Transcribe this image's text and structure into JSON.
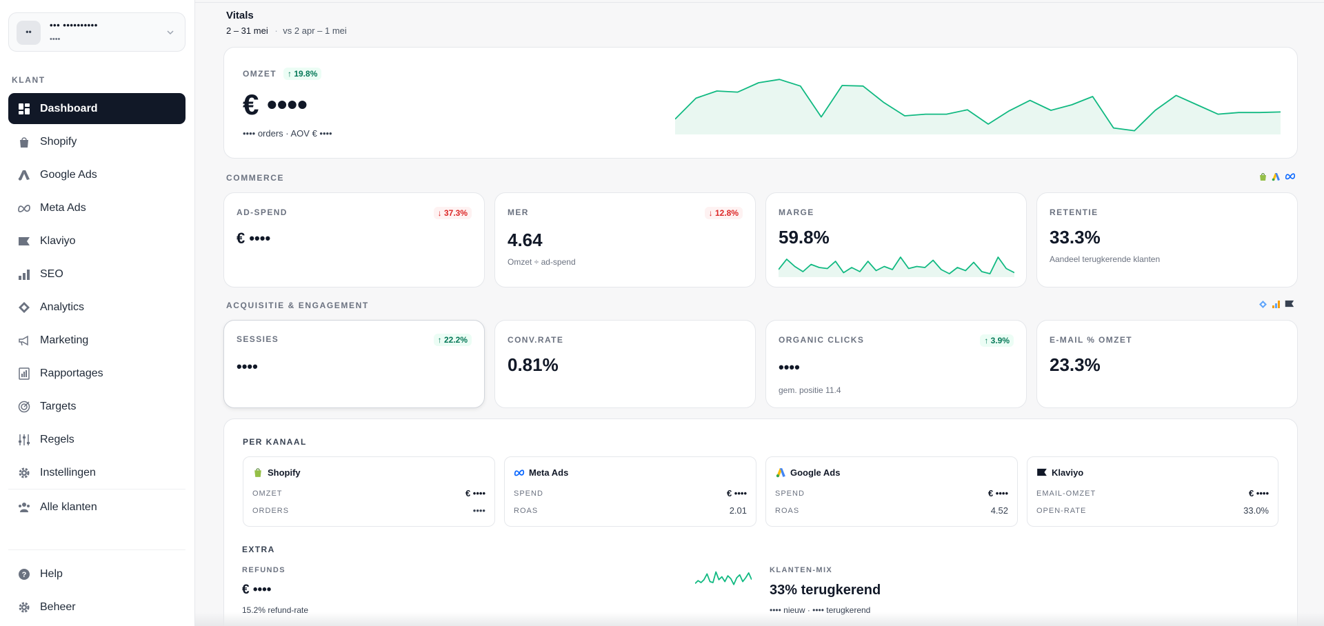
{
  "account": {
    "avatar": "••",
    "name": "••• ••••••••••",
    "sub": "••••"
  },
  "sidebar": {
    "section_label": "KLANT",
    "items": [
      {
        "label": "Dashboard",
        "icon": "dashboard-icon",
        "active": true
      },
      {
        "label": "Shopify",
        "icon": "shopify-bag-icon"
      },
      {
        "label": "Google Ads",
        "icon": "google-ads-icon"
      },
      {
        "label": "Meta Ads",
        "icon": "meta-infinity-icon"
      },
      {
        "label": "Klaviyo",
        "icon": "klaviyo-flag-icon"
      },
      {
        "label": "SEO",
        "icon": "seo-bars-icon"
      },
      {
        "label": "Analytics",
        "icon": "analytics-diamond-icon"
      },
      {
        "label": "Marketing",
        "icon": "megaphone-icon"
      },
      {
        "label": "Rapportages",
        "icon": "report-icon"
      },
      {
        "label": "Targets",
        "icon": "target-icon"
      },
      {
        "label": "Regels",
        "icon": "sliders-icon"
      },
      {
        "label": "Instellingen",
        "icon": "gear-icon"
      },
      {
        "label": "Alle klanten",
        "icon": "users-icon"
      }
    ],
    "footer": [
      {
        "label": "Help",
        "icon": "help-icon"
      },
      {
        "label": "Beheer",
        "icon": "gear-icon"
      }
    ]
  },
  "header": {
    "title": "Vitals",
    "range": "2 – 31 mei",
    "separator": "·",
    "compare": "vs 2 apr – 1 mei"
  },
  "omzet": {
    "label": "OMZET",
    "change": "↑ 19.8%",
    "value": "€ ••••",
    "sub": "•••• orders · AOV € ••••",
    "sparkline": [
      24,
      62,
      75,
      73,
      90,
      96,
      84,
      28,
      85,
      84,
      54,
      30,
      33,
      33,
      41,
      15,
      39,
      58,
      40,
      50,
      65,
      8,
      3,
      40,
      67,
      50,
      33,
      36,
      36,
      37
    ]
  },
  "commerce": {
    "label": "COMMERCE",
    "source_icons": [
      "shopify-icon",
      "google-ads-icon",
      "meta-icon"
    ],
    "cards": [
      {
        "label": "AD-SPEND",
        "change": "↓ 37.3%",
        "direction": "down",
        "value": "€ ••••",
        "sub": ""
      },
      {
        "label": "MER",
        "change": "↓ 12.8%",
        "direction": "down",
        "value": "4.64",
        "sub": "Omzet ÷ ad-spend"
      },
      {
        "label": "MARGE",
        "change": "",
        "direction": "",
        "value": "59.8%",
        "sub": "",
        "sparkline": [
          30,
          80,
          45,
          20,
          55,
          40,
          35,
          70,
          15,
          40,
          20,
          70,
          25,
          45,
          30,
          90,
          35,
          45,
          40,
          75,
          30,
          10,
          40,
          25,
          65,
          20,
          10,
          90,
          35,
          15
        ]
      },
      {
        "label": "RETENTIE",
        "change": "",
        "direction": "",
        "value": "33.3%",
        "sub": "Aandeel terugkerende klanten"
      }
    ]
  },
  "acquisitie": {
    "label": "ACQUISITIE & ENGAGEMENT",
    "source_icons": [
      "analytics-icon",
      "seo-icon",
      "klaviyo-icon"
    ],
    "cards": [
      {
        "label": "SESSIES",
        "change": "↑ 22.2%",
        "direction": "up",
        "value": "••••",
        "sub": ""
      },
      {
        "label": "CONV.RATE",
        "change": "",
        "direction": "",
        "value": "0.81%",
        "sub": ""
      },
      {
        "label": "ORGANIC CLICKS",
        "change": "↑ 3.9%",
        "direction": "up",
        "value": "••••",
        "sub": "gem. positie 11.4"
      },
      {
        "label": "E-MAIL % OMZET",
        "change": "",
        "direction": "",
        "value": "23.3%",
        "sub": ""
      }
    ]
  },
  "per_kanaal": {
    "label": "PER KANAAL",
    "cards": [
      {
        "name": "Shopify",
        "icon": "shopify-icon",
        "rows": [
          {
            "label": "OMZET",
            "value": "€ ••••"
          },
          {
            "label": "ORDERS",
            "value": "••••"
          }
        ]
      },
      {
        "name": "Meta Ads",
        "icon": "meta-icon",
        "rows": [
          {
            "label": "SPEND",
            "value": "€ ••••"
          },
          {
            "label": "ROAS",
            "value": "2.01"
          }
        ]
      },
      {
        "name": "Google Ads",
        "icon": "google-ads-icon",
        "rows": [
          {
            "label": "SPEND",
            "value": "€ ••••"
          },
          {
            "label": "ROAS",
            "value": "4.52"
          }
        ]
      },
      {
        "name": "Klaviyo",
        "icon": "klaviyo-icon",
        "rows": [
          {
            "label": "EMAIL-OMZET",
            "value": "€ ••••"
          },
          {
            "label": "OPEN-RATE",
            "value": "33.0%"
          }
        ]
      }
    ]
  },
  "extra": {
    "label": "EXTRA",
    "refunds": {
      "label": "REFUNDS",
      "value": "€ ••••",
      "sub": "15.2% refund-rate",
      "sparkline": [
        20,
        35,
        25,
        40,
        70,
        30,
        25,
        80,
        40,
        55,
        30,
        60,
        45,
        15,
        50,
        65,
        30,
        50,
        75,
        40
      ]
    },
    "klanten_mix": {
      "label": "KLANTEN-MIX",
      "value": "33% terugkerend",
      "sub": "•••• nieuw · •••• terugkerend"
    }
  },
  "colors": {
    "accent": "#10b981",
    "accent_fill": "#e9f7f1",
    "active_nav": "#111827",
    "down": "#dc2626",
    "up": "#047857"
  }
}
